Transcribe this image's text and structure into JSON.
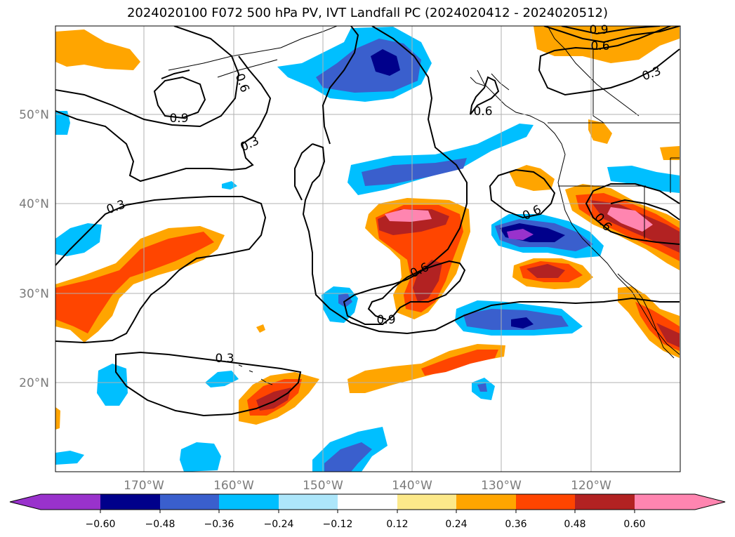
{
  "title": "2024020100 F072 500 hPa PV, IVT Landfall PC (2024020412 - 2024020512)",
  "lat_labels": [
    "50°N",
    "40°N",
    "30°N",
    "20°N"
  ],
  "lon_labels": [
    "170°W",
    "160°W",
    "150°W",
    "140°W",
    "130°W",
    "120°W"
  ],
  "contour_labels": [
    "0.9",
    "0.6",
    "0.3",
    "0.6",
    "0.9",
    "0.3",
    "0.3",
    "0.6",
    "0.6",
    "0.6",
    "0.6",
    "0.9",
    "0.3",
    "0.9"
  ],
  "colorbar": {
    "ticks": [
      "−0.60",
      "−0.48",
      "−0.36",
      "−0.24",
      "−0.12",
      "0.12",
      "0.24",
      "0.36",
      "0.48",
      "0.60"
    ],
    "colors": [
      "#9932cc",
      "#00008b",
      "#3a5fcd",
      "#00bfff",
      "#ade6fa",
      "#ffffff",
      "#fce98a",
      "#ffa500",
      "#ff4500",
      "#b22222",
      "#ff85b0"
    ]
  },
  "colors": {
    "land_line": "#000000",
    "grid": "#b0b0b0",
    "contour": "#000000"
  }
}
